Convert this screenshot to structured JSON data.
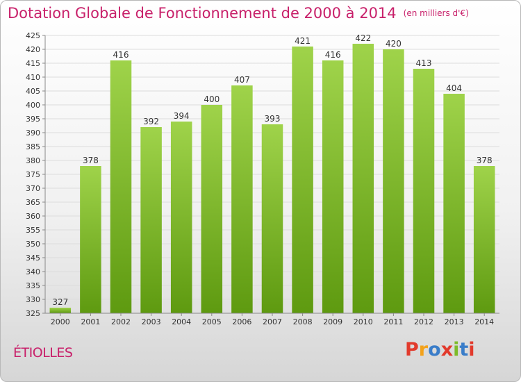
{
  "chart_data": {
    "type": "bar",
    "title": "Dotation Globale de Fonctionnement de 2000 à 2014",
    "subtitle": "(en milliers d'€)",
    "categories": [
      "2000",
      "2001",
      "2002",
      "2003",
      "2004",
      "2005",
      "2006",
      "2007",
      "2008",
      "2009",
      "2010",
      "2011",
      "2012",
      "2013",
      "2014"
    ],
    "values": [
      327,
      378,
      416,
      392,
      394,
      400,
      407,
      393,
      421,
      416,
      422,
      420,
      413,
      404,
      378
    ],
    "ylim": [
      325,
      425
    ],
    "ytick_step": 5,
    "grid": true,
    "legend": "none",
    "colors": {
      "bar_light": "#9fd34a",
      "bar_dark": "#5e9a10"
    }
  },
  "footer": {
    "commune": "ÉTIOLLES",
    "logo_text": "Proxiti",
    "logo_colors": [
      "#e23a2c",
      "#f3a21b",
      "#3a7dc9",
      "#e23a2c",
      "#7dbb2a",
      "#3a7dc9",
      "#e23a2c"
    ]
  }
}
